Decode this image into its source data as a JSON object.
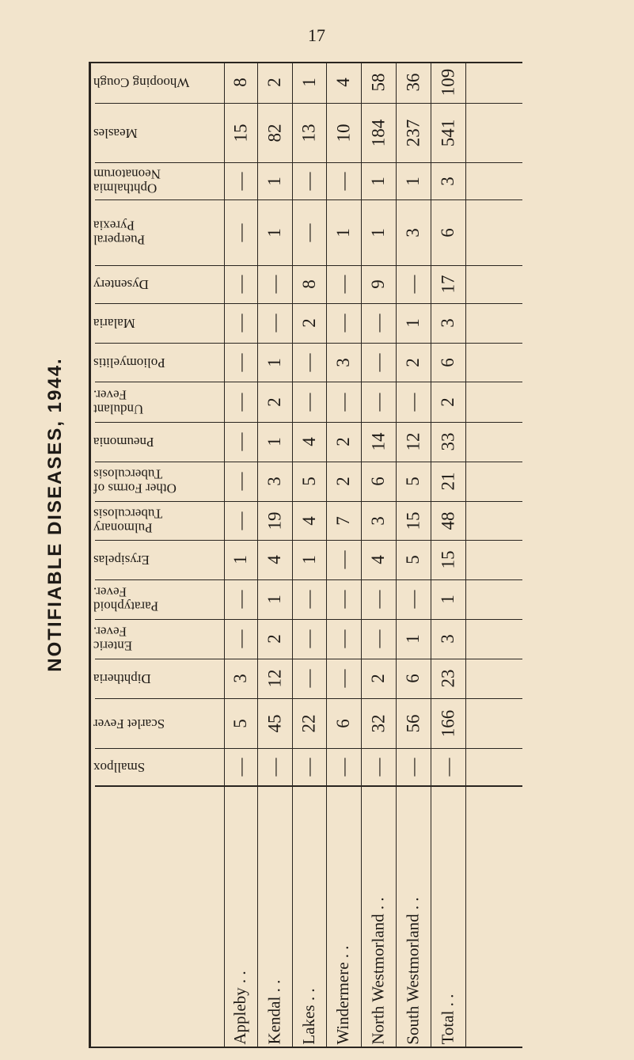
{
  "page_number": "17",
  "side_title": "NOTIFIABLE DISEASES, 1944.",
  "table": {
    "diseases": [
      "Whooping Cough",
      "Measles",
      "Ophthalmia\nNeonatorum",
      "Puerperal\nPyrexia",
      "Dysentery",
      "Malaria",
      "Poliomyelitis",
      "Undulant\nFever.",
      "Pneumonia",
      "Other Forms of\nTuberculosis",
      "Pulmonary\nTuberculosis",
      "Erysipelas",
      "Paratyphoid\nFever.",
      "Enteric\nFever.",
      "Diphtheria",
      "Scarlet Fever",
      "Smallpox"
    ],
    "districts": [
      "Appleby  . .",
      "Kendal  . .",
      "Lakes  . .",
      "Windermere  . .",
      "North Westmorland  . .",
      "South Westmorland  . .",
      "Total  . ."
    ],
    "values": [
      [
        "8",
        "2",
        "1",
        "4",
        "58",
        "36",
        "109"
      ],
      [
        "15",
        "82",
        "13",
        "10",
        "184",
        "237",
        "541"
      ],
      [
        "—",
        "1",
        "—",
        "—",
        "1",
        "1",
        "3"
      ],
      [
        "—",
        "1",
        "—",
        "1",
        "1",
        "3",
        "6"
      ],
      [
        "—",
        "—",
        "8",
        "—",
        "9",
        "—",
        "17"
      ],
      [
        "—",
        "—",
        "2",
        "—",
        "—",
        "1",
        "3"
      ],
      [
        "—",
        "1",
        "—",
        "3",
        "—",
        "2",
        "6"
      ],
      [
        "—",
        "2",
        "—",
        "—",
        "—",
        "—",
        "2"
      ],
      [
        "—",
        "1",
        "4",
        "2",
        "14",
        "12",
        "33"
      ],
      [
        "—",
        "3",
        "5",
        "2",
        "6",
        "5",
        "21"
      ],
      [
        "—",
        "19",
        "4",
        "7",
        "3",
        "15",
        "48"
      ],
      [
        "1",
        "4",
        "1",
        "—",
        "4",
        "5",
        "15"
      ],
      [
        "—",
        "1",
        "—",
        "—",
        "—",
        "—",
        "1"
      ],
      [
        "—",
        "2",
        "—",
        "—",
        "—",
        "1",
        "3"
      ],
      [
        "3",
        "12",
        "—",
        "—",
        "2",
        "6",
        "23"
      ],
      [
        "5",
        "45",
        "22",
        "6",
        "32",
        "56",
        "166"
      ],
      [
        "—",
        "—",
        "—",
        "—",
        "—",
        "—",
        "—"
      ]
    ]
  }
}
